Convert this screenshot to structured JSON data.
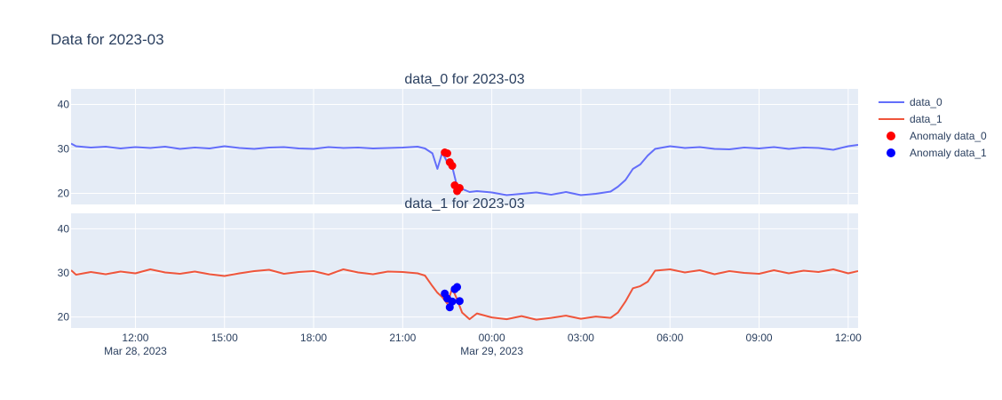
{
  "chart_data": {
    "type": "line",
    "title": "Data for 2023-03",
    "x_start": "2023-03-28T09:50",
    "x_end": "2023-03-29T12:20",
    "x_step_minutes": 5,
    "x_ticks": [
      {
        "time": "2023-03-28T12:00",
        "label": "12:00",
        "date_label": "Mar 28, 2023"
      },
      {
        "time": "2023-03-28T15:00",
        "label": "15:00",
        "date_label": ""
      },
      {
        "time": "2023-03-28T18:00",
        "label": "18:00",
        "date_label": ""
      },
      {
        "time": "2023-03-28T21:00",
        "label": "21:00",
        "date_label": ""
      },
      {
        "time": "2023-03-29T00:00",
        "label": "00:00",
        "date_label": "Mar 29, 2023"
      },
      {
        "time": "2023-03-29T03:00",
        "label": "03:00",
        "date_label": ""
      },
      {
        "time": "2023-03-29T06:00",
        "label": "06:00",
        "date_label": ""
      },
      {
        "time": "2023-03-29T09:00",
        "label": "09:00",
        "date_label": ""
      },
      {
        "time": "2023-03-29T12:00",
        "label": "12:00",
        "date_label": ""
      }
    ],
    "grid": true,
    "legend_position": "top-right",
    "subplots": [
      {
        "title": "data_0 for 2023-03",
        "ylim": [
          17.5,
          43.5
        ],
        "y_ticks": [
          20,
          30,
          40
        ],
        "series": [
          {
            "name": "data_0",
            "color": "#636efa",
            "mode": "line",
            "points": [
              [
                "2023-03-28T09:50",
                31.2
              ],
              [
                "2023-03-28T10:00",
                30.6
              ],
              [
                "2023-03-28T10:30",
                30.3
              ],
              [
                "2023-03-28T11:00",
                30.5
              ],
              [
                "2023-03-28T11:30",
                30.1
              ],
              [
                "2023-03-28T12:00",
                30.4
              ],
              [
                "2023-03-28T12:30",
                30.2
              ],
              [
                "2023-03-28T13:00",
                30.5
              ],
              [
                "2023-03-28T13:30",
                30.0
              ],
              [
                "2023-03-28T14:00",
                30.3
              ],
              [
                "2023-03-28T14:30",
                30.1
              ],
              [
                "2023-03-28T15:00",
                30.6
              ],
              [
                "2023-03-28T15:30",
                30.2
              ],
              [
                "2023-03-28T16:00",
                30.0
              ],
              [
                "2023-03-28T16:30",
                30.3
              ],
              [
                "2023-03-28T17:00",
                30.4
              ],
              [
                "2023-03-28T17:30",
                30.1
              ],
              [
                "2023-03-28T18:00",
                30.0
              ],
              [
                "2023-03-28T18:30",
                30.4
              ],
              [
                "2023-03-28T19:00",
                30.2
              ],
              [
                "2023-03-28T19:30",
                30.3
              ],
              [
                "2023-03-28T20:00",
                30.1
              ],
              [
                "2023-03-28T20:30",
                30.2
              ],
              [
                "2023-03-28T21:00",
                30.3
              ],
              [
                "2023-03-28T21:30",
                30.5
              ],
              [
                "2023-03-28T21:45",
                30.1
              ],
              [
                "2023-03-28T22:00",
                29.0
              ],
              [
                "2023-03-28T22:10",
                25.5
              ],
              [
                "2023-03-28T22:20",
                29.2
              ],
              [
                "2023-03-28T22:30",
                27.0
              ],
              [
                "2023-03-28T22:40",
                26.0
              ],
              [
                "2023-03-28T22:50",
                21.5
              ],
              [
                "2023-03-28T23:00",
                21.0
              ],
              [
                "2023-03-28T23:15",
                20.3
              ],
              [
                "2023-03-28T23:30",
                20.5
              ],
              [
                "2023-03-29T00:00",
                20.2
              ],
              [
                "2023-03-29T00:30",
                19.6
              ],
              [
                "2023-03-29T01:00",
                19.9
              ],
              [
                "2023-03-29T01:30",
                20.2
              ],
              [
                "2023-03-29T02:00",
                19.7
              ],
              [
                "2023-03-29T02:30",
                20.3
              ],
              [
                "2023-03-29T03:00",
                19.6
              ],
              [
                "2023-03-29T03:30",
                19.9
              ],
              [
                "2023-03-29T04:00",
                20.4
              ],
              [
                "2023-03-29T04:15",
                21.5
              ],
              [
                "2023-03-29T04:30",
                23.0
              ],
              [
                "2023-03-29T04:45",
                25.5
              ],
              [
                "2023-03-29T05:00",
                26.5
              ],
              [
                "2023-03-29T05:15",
                28.5
              ],
              [
                "2023-03-29T05:30",
                30.0
              ],
              [
                "2023-03-29T06:00",
                30.6
              ],
              [
                "2023-03-29T06:30",
                30.2
              ],
              [
                "2023-03-29T07:00",
                30.4
              ],
              [
                "2023-03-29T07:30",
                30.0
              ],
              [
                "2023-03-29T08:00",
                29.9
              ],
              [
                "2023-03-29T08:30",
                30.3
              ],
              [
                "2023-03-29T09:00",
                30.1
              ],
              [
                "2023-03-29T09:30",
                30.4
              ],
              [
                "2023-03-29T10:00",
                30.0
              ],
              [
                "2023-03-29T10:30",
                30.3
              ],
              [
                "2023-03-29T11:00",
                30.2
              ],
              [
                "2023-03-29T11:30",
                29.8
              ],
              [
                "2023-03-29T12:00",
                30.6
              ],
              [
                "2023-03-29T12:20",
                30.9
              ]
            ]
          },
          {
            "name": "Anomaly data_0",
            "color": "#ff0000",
            "mode": "markers",
            "points": [
              [
                "2023-03-28T22:25",
                29.2
              ],
              [
                "2023-03-28T22:30",
                29.0
              ],
              [
                "2023-03-28T22:35",
                27.0
              ],
              [
                "2023-03-28T22:40",
                26.2
              ],
              [
                "2023-03-28T22:45",
                21.8
              ],
              [
                "2023-03-28T22:50",
                20.5
              ],
              [
                "2023-03-28T22:55",
                21.2
              ]
            ]
          }
        ]
      },
      {
        "title": "data_1 for 2023-03",
        "ylim": [
          17.5,
          43.5
        ],
        "y_ticks": [
          20,
          30,
          40
        ],
        "series": [
          {
            "name": "data_1",
            "color": "#ef553b",
            "mode": "line",
            "points": [
              [
                "2023-03-28T09:50",
                30.6
              ],
              [
                "2023-03-28T10:00",
                29.6
              ],
              [
                "2023-03-28T10:30",
                30.2
              ],
              [
                "2023-03-28T11:00",
                29.7
              ],
              [
                "2023-03-28T11:30",
                30.3
              ],
              [
                "2023-03-28T12:00",
                29.9
              ],
              [
                "2023-03-28T12:30",
                30.8
              ],
              [
                "2023-03-28T13:00",
                30.1
              ],
              [
                "2023-03-28T13:30",
                29.8
              ],
              [
                "2023-03-28T14:00",
                30.3
              ],
              [
                "2023-03-28T14:30",
                29.7
              ],
              [
                "2023-03-28T15:00",
                29.3
              ],
              [
                "2023-03-28T15:30",
                29.9
              ],
              [
                "2023-03-28T16:00",
                30.4
              ],
              [
                "2023-03-28T16:30",
                30.7
              ],
              [
                "2023-03-28T17:00",
                29.8
              ],
              [
                "2023-03-28T17:30",
                30.2
              ],
              [
                "2023-03-28T18:00",
                30.4
              ],
              [
                "2023-03-28T18:30",
                29.6
              ],
              [
                "2023-03-28T19:00",
                30.8
              ],
              [
                "2023-03-28T19:30",
                30.1
              ],
              [
                "2023-03-28T20:00",
                29.7
              ],
              [
                "2023-03-28T20:30",
                30.3
              ],
              [
                "2023-03-28T21:00",
                30.2
              ],
              [
                "2023-03-28T21:30",
                29.9
              ],
              [
                "2023-03-28T21:45",
                29.4
              ],
              [
                "2023-03-28T22:00",
                27.0
              ],
              [
                "2023-03-28T22:10",
                25.5
              ],
              [
                "2023-03-28T22:20",
                24.5
              ],
              [
                "2023-03-28T22:30",
                23.0
              ],
              [
                "2023-03-28T22:40",
                26.5
              ],
              [
                "2023-03-28T22:50",
                24.0
              ],
              [
                "2023-03-28T23:00",
                21.0
              ],
              [
                "2023-03-28T23:15",
                19.5
              ],
              [
                "2023-03-28T23:30",
                20.8
              ],
              [
                "2023-03-29T00:00",
                19.9
              ],
              [
                "2023-03-29T00:30",
                19.5
              ],
              [
                "2023-03-29T01:00",
                20.2
              ],
              [
                "2023-03-29T01:30",
                19.4
              ],
              [
                "2023-03-29T02:00",
                19.8
              ],
              [
                "2023-03-29T02:30",
                20.3
              ],
              [
                "2023-03-29T03:00",
                19.6
              ],
              [
                "2023-03-29T03:30",
                20.1
              ],
              [
                "2023-03-29T04:00",
                19.8
              ],
              [
                "2023-03-29T04:15",
                21.0
              ],
              [
                "2023-03-29T04:30",
                23.5
              ],
              [
                "2023-03-29T04:45",
                26.5
              ],
              [
                "2023-03-29T05:00",
                27.0
              ],
              [
                "2023-03-29T05:15",
                28.0
              ],
              [
                "2023-03-29T05:30",
                30.5
              ],
              [
                "2023-03-29T06:00",
                30.8
              ],
              [
                "2023-03-29T06:30",
                30.1
              ],
              [
                "2023-03-29T07:00",
                30.6
              ],
              [
                "2023-03-29T07:30",
                29.7
              ],
              [
                "2023-03-29T08:00",
                30.4
              ],
              [
                "2023-03-29T08:30",
                30.0
              ],
              [
                "2023-03-29T09:00",
                29.8
              ],
              [
                "2023-03-29T09:30",
                30.6
              ],
              [
                "2023-03-29T10:00",
                29.9
              ],
              [
                "2023-03-29T10:30",
                30.5
              ],
              [
                "2023-03-29T11:00",
                30.2
              ],
              [
                "2023-03-29T11:30",
                30.8
              ],
              [
                "2023-03-29T12:00",
                29.9
              ],
              [
                "2023-03-29T12:20",
                30.4
              ]
            ]
          },
          {
            "name": "Anomaly data_1",
            "color": "#0000ff",
            "mode": "markers",
            "points": [
              [
                "2023-03-28T22:25",
                25.3
              ],
              [
                "2023-03-28T22:30",
                24.2
              ],
              [
                "2023-03-28T22:35",
                22.2
              ],
              [
                "2023-03-28T22:40",
                23.5
              ],
              [
                "2023-03-28T22:45",
                26.3
              ],
              [
                "2023-03-28T22:50",
                26.8
              ],
              [
                "2023-03-28T22:55",
                23.6
              ]
            ]
          }
        ]
      }
    ]
  }
}
